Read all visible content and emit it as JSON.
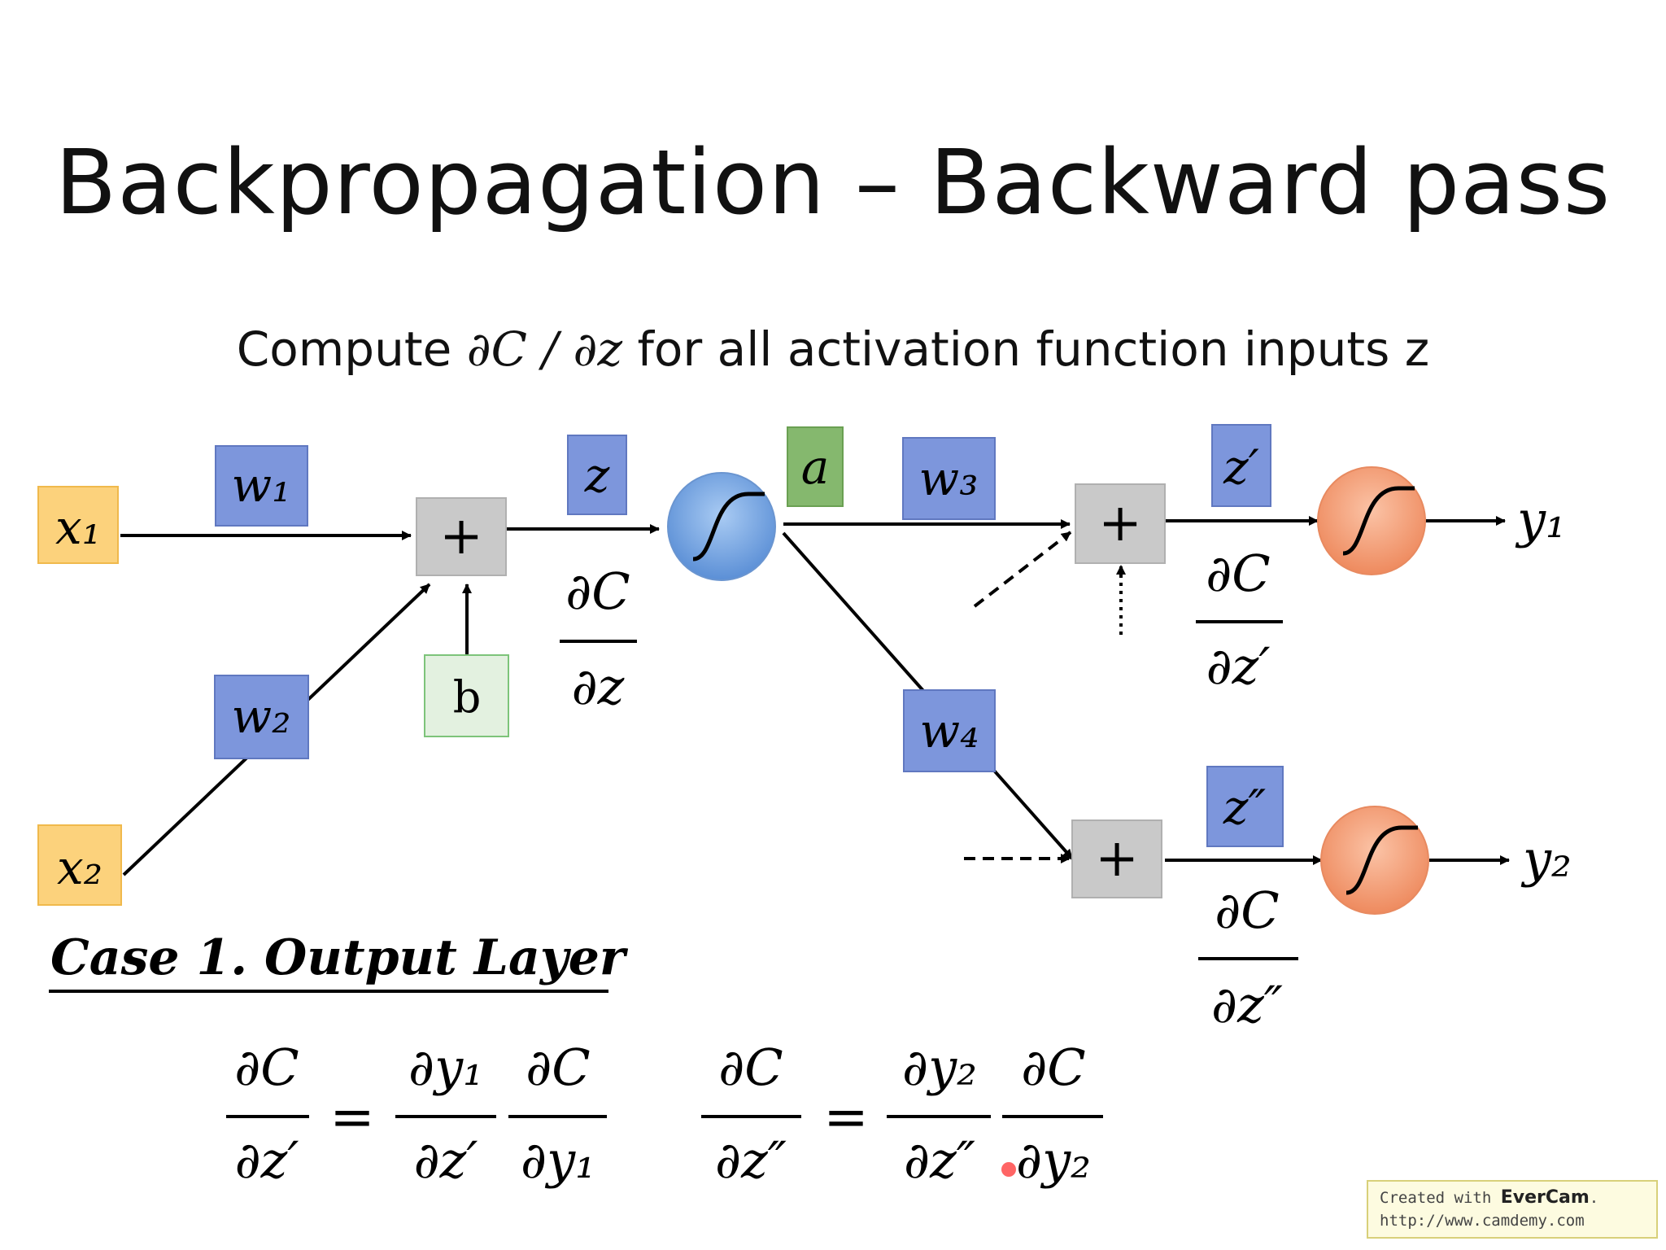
{
  "title": "Backpropagation – Backward pass",
  "subtitle": {
    "prefix": "Compute",
    "math": "∂C / ∂z",
    "suffix": "for all activation function inputs z"
  },
  "nodes": {
    "x1": "x₁",
    "x2": "x₂",
    "w1": "w₁",
    "w2": "w₂",
    "w3": "w₃",
    "w4": "w₄",
    "b": "b",
    "plus": "+",
    "z": "z",
    "a": "a",
    "z_prime": "z′",
    "z_double_prime": "z″",
    "y1": "y₁",
    "y2": "y₂"
  },
  "gradients": {
    "dC": "∂C",
    "dz": "∂z",
    "dz_prime": "∂z′",
    "dz_double_prime": "∂z″"
  },
  "case_heading": "Case 1. Output Layer",
  "equation1": {
    "lhs_num": "∂C",
    "lhs_den": "∂z′",
    "eq": "=",
    "f1_num": "∂y₁",
    "f1_den": "∂z′",
    "f2_num": "∂C",
    "f2_den": "∂y₁"
  },
  "equation2": {
    "lhs_num": "∂C",
    "lhs_den": "∂z″",
    "eq": "=",
    "f1_num": "∂y₂",
    "f1_den": "∂z″",
    "f2_num": "∂C",
    "f2_den": "∂y₂"
  },
  "watermark": {
    "line1_prefix": "Created with ",
    "brand": "EverCam",
    "line1_suffix": ".",
    "line2": "http://www.camdemy.com"
  },
  "colors": {
    "input_box": "#fcd27c",
    "weight_box": "#7d96dc",
    "bias_box": "#e3f1e0",
    "activation_box": "#85b86e",
    "sum_box": "#c9c9c9",
    "hidden_neuron": "#6fa3e0",
    "output_neuron": "#f39a72"
  }
}
